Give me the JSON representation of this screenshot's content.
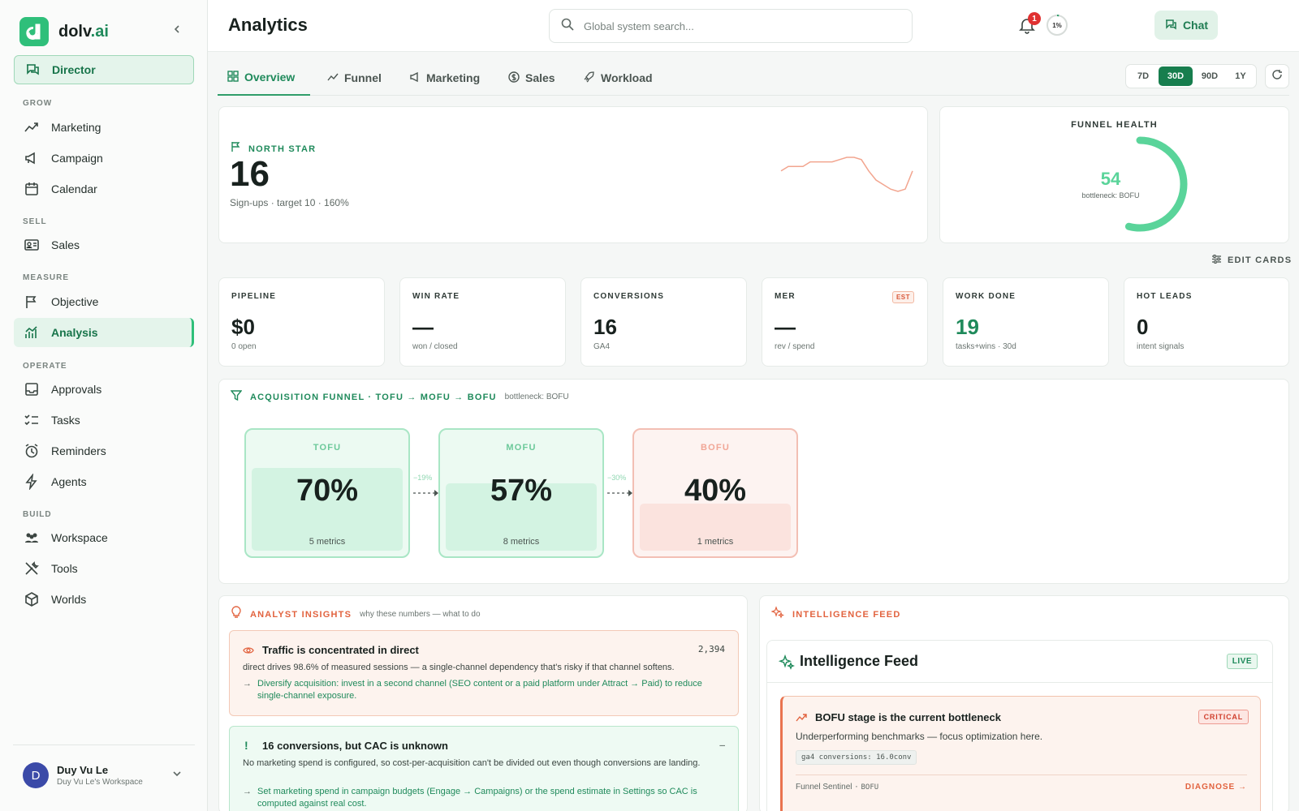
{
  "brand": {
    "name": "dolv",
    "suffix": ".ai"
  },
  "sidebar": {
    "top_item": {
      "label": "Director",
      "icon": "chat-bubbles-icon"
    },
    "sections": [
      {
        "label": "GROW",
        "items": [
          {
            "label": "Marketing",
            "icon": "trend-icon"
          },
          {
            "label": "Campaign",
            "icon": "megaphone-icon"
          },
          {
            "label": "Calendar",
            "icon": "calendar-icon"
          }
        ]
      },
      {
        "label": "SELL",
        "items": [
          {
            "label": "Sales",
            "icon": "id-card-icon"
          }
        ]
      },
      {
        "label": "MEASURE",
        "items": [
          {
            "label": "Objective",
            "icon": "flag-icon"
          },
          {
            "label": "Analysis",
            "icon": "chart-icon",
            "active": true
          }
        ]
      },
      {
        "label": "OPERATE",
        "items": [
          {
            "label": "Approvals",
            "icon": "inbox-icon"
          },
          {
            "label": "Tasks",
            "icon": "checklist-icon"
          },
          {
            "label": "Reminders",
            "icon": "alarm-icon"
          },
          {
            "label": "Agents",
            "icon": "bolt-icon"
          }
        ]
      },
      {
        "label": "BUILD",
        "items": [
          {
            "label": "Workspace",
            "icon": "team-icon"
          },
          {
            "label": "Tools",
            "icon": "tools-icon"
          },
          {
            "label": "Worlds",
            "icon": "cube-icon"
          }
        ]
      }
    ],
    "user": {
      "initial": "D",
      "name": "Duy Vu Le",
      "workspace": "Duy Vu Le's Workspace"
    }
  },
  "header": {
    "title": "Analytics",
    "search_placeholder": "Global system search...",
    "chat_label": "Chat",
    "notification_count": "1",
    "progress_label": "1%",
    "progress_fraction": 0.01
  },
  "tabs": [
    {
      "label": "Overview",
      "active": true
    },
    {
      "label": "Funnel"
    },
    {
      "label": "Marketing"
    },
    {
      "label": "Sales"
    },
    {
      "label": "Workload"
    }
  ],
  "ranges": [
    {
      "label": "7D"
    },
    {
      "label": "30D",
      "active": true
    },
    {
      "label": "90D"
    },
    {
      "label": "1Y"
    }
  ],
  "north_star": {
    "label": "NORTH STAR",
    "value": "16",
    "sub": "Sign-ups · target 10 · 160%",
    "sparkline": [
      5,
      6,
      6,
      6,
      7,
      7,
      7,
      7,
      7.5,
      8,
      8,
      7.5,
      5,
      3,
      2,
      1,
      0.5,
      1,
      5
    ]
  },
  "funnel_health": {
    "label": "FUNNEL HEALTH",
    "value": "54",
    "score": 54,
    "sub": "bottleneck: BOFU"
  },
  "edit_cards_label": "EDIT CARDS",
  "metrics": [
    {
      "label": "PIPELINE",
      "value": "$0",
      "sub": "0 open"
    },
    {
      "label": "WIN RATE",
      "value": "—",
      "sub": "won / closed"
    },
    {
      "label": "CONVERSIONS",
      "value": "16",
      "sub": "GA4"
    },
    {
      "label": "MER",
      "value": "—",
      "sub": "rev / spend",
      "badge": "EST"
    },
    {
      "label": "WORK DONE",
      "value": "19",
      "sub": "tasks+wins · 30d",
      "accent": "#1f8a5b"
    },
    {
      "label": "HOT LEADS",
      "value": "0",
      "sub": "intent signals"
    }
  ],
  "funnel": {
    "title": "ACQUISITION FUNNEL · TOFU → MOFU → BOFU",
    "bottleneck": "bottleneck: BOFU",
    "stages": [
      {
        "name": "TOFU",
        "pct": "70%",
        "fraction": 0.7,
        "metrics": "5 metrics",
        "tone": "green"
      },
      {
        "name": "MOFU",
        "pct": "57%",
        "fraction": 0.57,
        "metrics": "8 metrics",
        "tone": "green"
      },
      {
        "name": "BOFU",
        "pct": "40%",
        "fraction": 0.4,
        "metrics": "1 metrics",
        "tone": "red"
      }
    ],
    "drops": [
      "−19%",
      "−30%"
    ]
  },
  "insights": {
    "title": "ANALYST INSIGHTS",
    "subtitle": "why these numbers — what to do",
    "items": [
      {
        "title": "Traffic is concentrated in direct",
        "number": "2,394",
        "body": "direct drives 98.6% of measured sessions — a single-channel dependency that's risky if that channel softens.",
        "action": "Diversify acquisition: invest in a second channel (SEO content or a paid platform under Attract → Paid) to reduce single-channel exposure."
      },
      {
        "title": "16 conversions, but CAC is unknown",
        "number": "—",
        "body": "No marketing spend is configured, so cost-per-acquisition can't be divided out even though conversions are landing.",
        "action": "Set marketing spend in campaign budgets (Engage → Campaigns) or the spend estimate in Settings so CAC is computed against real cost."
      }
    ]
  },
  "feed": {
    "title": "INTELLIGENCE FEED",
    "inner_title": "Intelligence Feed",
    "live_label": "LIVE",
    "alert": {
      "title": "BOFU stage is the current bottleneck",
      "badge": "CRITICAL",
      "body": "Underperforming benchmarks — focus optimization here.",
      "code": "ga4 conversions: 16.0conv",
      "source": "Funnel Sentinel",
      "source_sep": "·",
      "source_tag": "BOFU",
      "action": "DIAGNOSE →"
    }
  },
  "colors": {
    "accent": "#1f8a5b",
    "brand": "#2fbf7a",
    "warning": "#e2633f",
    "critical": "#d0402e"
  }
}
